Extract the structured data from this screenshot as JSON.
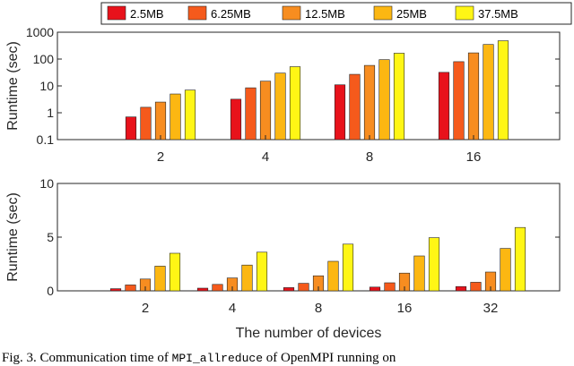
{
  "chart_data": [
    {
      "type": "bar",
      "ylabel": "Runtime (sec)",
      "xlabel": "",
      "yscale": "log",
      "ylim": [
        0.1,
        1000
      ],
      "yticks": [
        "0.1",
        "1",
        "10",
        "100",
        "1000"
      ],
      "categories": [
        "2",
        "4",
        "8",
        "16"
      ],
      "series": [
        {
          "name": "2.5MB",
          "values": [
            0.7,
            3.2,
            11,
            32
          ]
        },
        {
          "name": "6.25MB",
          "values": [
            1.6,
            8.5,
            27,
            80
          ]
        },
        {
          "name": "12.5MB",
          "values": [
            2.5,
            15,
            58,
            170
          ]
        },
        {
          "name": "25MB",
          "values": [
            5,
            30,
            95,
            350
          ]
        },
        {
          "name": "37.5MB",
          "values": [
            7,
            52,
            165,
            480
          ]
        }
      ],
      "legend": "top"
    },
    {
      "type": "bar",
      "ylabel": "Runtime (sec)",
      "xlabel": "The number of devices",
      "yscale": "linear",
      "ylim": [
        0,
        10
      ],
      "yticks": [
        "0",
        "5",
        "10"
      ],
      "categories": [
        "2",
        "4",
        "8",
        "16",
        "32"
      ],
      "series": [
        {
          "name": "2.5MB",
          "values": [
            0.2,
            0.25,
            0.3,
            0.35,
            0.4
          ]
        },
        {
          "name": "6.25MB",
          "values": [
            0.55,
            0.6,
            0.7,
            0.75,
            0.8
          ]
        },
        {
          "name": "12.5MB",
          "values": [
            1.1,
            1.2,
            1.4,
            1.65,
            1.75
          ]
        },
        {
          "name": "25MB",
          "values": [
            2.3,
            2.4,
            2.75,
            3.25,
            3.95
          ]
        },
        {
          "name": "37.5MB",
          "values": [
            3.5,
            3.6,
            4.35,
            4.95,
            5.9
          ]
        }
      ]
    }
  ],
  "colors": [
    "#e8121b",
    "#f55a1c",
    "#f78d20",
    "#fcb712",
    "#fff615"
  ],
  "caption": {
    "prefix": "Fig. 3.  Communication time of ",
    "code": "MPI_allreduce",
    "suffix": " of OpenMPI running on"
  }
}
